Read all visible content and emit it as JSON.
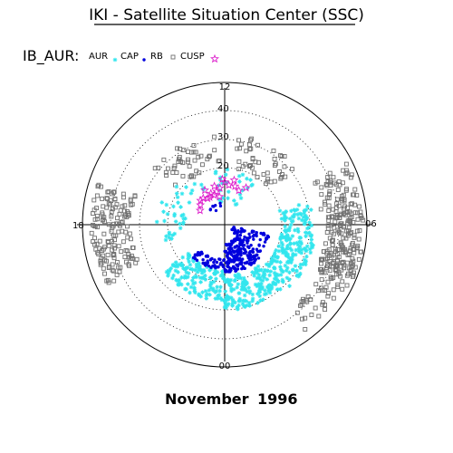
{
  "title": "IKI - Satellite Situation Center (SSC)",
  "footer": {
    "month": "November",
    "year": "1996"
  },
  "legend": {
    "label": "IB_AUR:",
    "items": [
      {
        "name": "AUR",
        "marker": "asterisk",
        "color": "#33e6ee"
      },
      {
        "name": "CAP",
        "marker": "dot",
        "color": "#0000dd"
      },
      {
        "name": "RB",
        "marker": "open-square",
        "color": "#707070"
      },
      {
        "name": "CUSP",
        "marker": "star",
        "color": "#dd22cc"
      }
    ]
  },
  "chart_data": {
    "type": "scatter",
    "projection": "polar MLT / invariant latitude",
    "hour_labels": {
      "top": "12",
      "bottom": "00",
      "left": "18",
      "right": "06"
    },
    "radial_ticks": [
      {
        "label": "40",
        "value": 40
      },
      {
        "label": "30",
        "value": 30
      },
      {
        "label": "20",
        "value": 20
      }
    ],
    "grid": true,
    "colatitude_max": 50,
    "series": [
      {
        "name": "RB",
        "marker": "open-square",
        "color": "#707070",
        "description": "open squares forming dense band at 35-48 deg colatitude on dawn/dusk flanks and sparse points at 15-30 deg across dayside",
        "bands": [
          {
            "mlt": [
              4.0,
              6.5
            ],
            "colat": [
              36,
              49
            ],
            "n": 180
          },
          {
            "mlt": [
              6.5,
              7.8
            ],
            "colat": [
              34,
              48
            ],
            "n": 60
          },
          {
            "mlt": [
              16.8,
              19.8
            ],
            "colat": [
              33,
              47
            ],
            "n": 150
          },
          {
            "mlt": [
              8.5,
              11.5
            ],
            "colat": [
              20,
              32
            ],
            "n": 45
          },
          {
            "mlt": [
              12.2,
              15.5
            ],
            "colat": [
              20,
              32
            ],
            "n": 45
          },
          {
            "mlt": [
              2.5,
              4.0
            ],
            "colat": [
              38,
              47
            ],
            "n": 30
          }
        ]
      },
      {
        "name": "AUR",
        "marker": "asterisk",
        "color": "#33e6ee",
        "description": "asterisk oval from pre-midnight through dawn, plus scattered dayside points",
        "bands": [
          {
            "mlt": [
              20.5,
              24.0
            ],
            "colat": [
              16,
              27
            ],
            "n": 140
          },
          {
            "mlt": [
              0.0,
              3.0
            ],
            "colat": [
              18,
              30
            ],
            "n": 160
          },
          {
            "mlt": [
              3.0,
              5.5
            ],
            "colat": [
              20,
              32
            ],
            "n": 140
          },
          {
            "mlt": [
              5.5,
              7.0
            ],
            "colat": [
              20,
              31
            ],
            "n": 60
          },
          {
            "mlt": [
              14.0,
              19.0
            ],
            "colat": [
              14,
              24
            ],
            "n": 40
          },
          {
            "mlt": [
              9.5,
              12.8
            ],
            "colat": [
              8,
              20
            ],
            "n": 30
          }
        ]
      },
      {
        "name": "CAP",
        "marker": "dot",
        "color": "#0000dd",
        "description": "dense dots inside AUR oval around midnight-dawn sector",
        "bands": [
          {
            "mlt": [
              21.0,
              24.0
            ],
            "colat": [
              12,
              16
            ],
            "n": 50
          },
          {
            "mlt": [
              0.0,
              3.2
            ],
            "colat": [
              6,
              17
            ],
            "n": 180
          },
          {
            "mlt": [
              3.2,
              5.2
            ],
            "colat": [
              3,
              16
            ],
            "n": 60
          },
          {
            "mlt": [
              12.5,
              15.0
            ],
            "colat": [
              5,
              9
            ],
            "n": 8
          }
        ]
      },
      {
        "name": "CUSP",
        "marker": "star",
        "color": "#dd22cc",
        "description": "open stars near noon at ~10-16 deg colatitude",
        "points": [
          {
            "mlt": 12.0,
            "colat": 15
          },
          {
            "mlt": 11.6,
            "colat": 14
          },
          {
            "mlt": 11.0,
            "colat": 14
          },
          {
            "mlt": 10.5,
            "colat": 13
          },
          {
            "mlt": 10.0,
            "colat": 15
          },
          {
            "mlt": 12.5,
            "colat": 13
          },
          {
            "mlt": 12.9,
            "colat": 12
          },
          {
            "mlt": 13.3,
            "colat": 11
          },
          {
            "mlt": 13.6,
            "colat": 12
          },
          {
            "mlt": 13.9,
            "colat": 11
          },
          {
            "mlt": 14.2,
            "colat": 11
          },
          {
            "mlt": 14.6,
            "colat": 12
          },
          {
            "mlt": 15.0,
            "colat": 12
          },
          {
            "mlt": 13.0,
            "colat": 14
          },
          {
            "mlt": 12.2,
            "colat": 16
          },
          {
            "mlt": 11.2,
            "colat": 16
          },
          {
            "mlt": 14.0,
            "colat": 14
          },
          {
            "mlt": 15.4,
            "colat": 11
          },
          {
            "mlt": 16.0,
            "colat": 10
          },
          {
            "mlt": 12.7,
            "colat": 10
          }
        ]
      }
    ]
  }
}
